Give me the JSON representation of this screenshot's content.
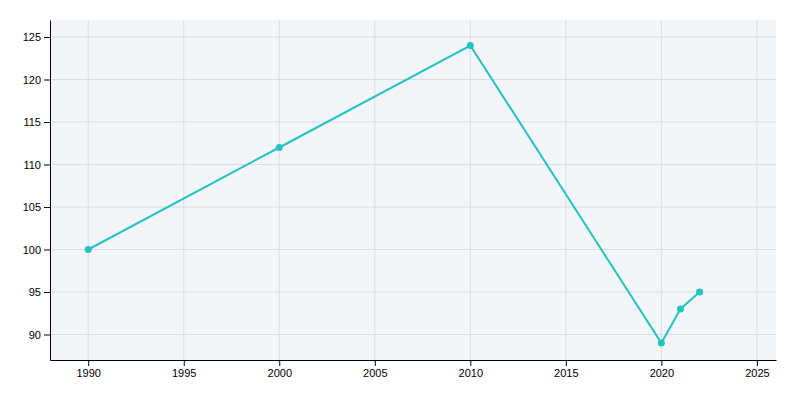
{
  "chart_data": {
    "type": "line",
    "x": [
      1990,
      2000,
      2010,
      2020,
      2021,
      2022
    ],
    "values": [
      100,
      112,
      124,
      89,
      93,
      95
    ],
    "color": "#22c4c4",
    "marker": "circle",
    "xlim": [
      1988,
      2026
    ],
    "ylim": [
      87,
      127
    ],
    "xticks": [
      1990,
      1995,
      2000,
      2005,
      2010,
      2015,
      2020,
      2025
    ],
    "yticks": [
      90,
      95,
      100,
      105,
      110,
      115,
      120,
      125
    ],
    "grid": true
  }
}
